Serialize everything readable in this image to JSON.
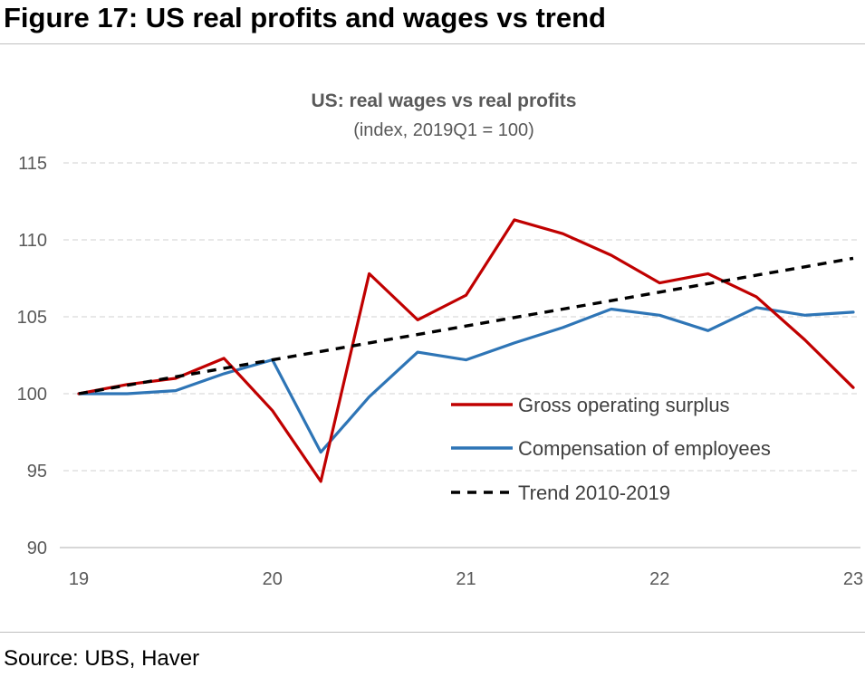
{
  "figure": {
    "title": "Figure 17: US real profits and wages vs trend",
    "source": "Source: UBS, Haver"
  },
  "chart_data": {
    "type": "line",
    "title": "US: real wages vs real profits",
    "subtitle": "(index, 2019Q1 = 100)",
    "xlabel": "",
    "ylabel": "",
    "x": [
      2019.0,
      2019.25,
      2019.5,
      2019.75,
      2020.0,
      2020.25,
      2020.5,
      2020.75,
      2021.0,
      2021.25,
      2021.5,
      2021.75,
      2022.0,
      2022.25,
      2022.5,
      2022.75,
      2023.0
    ],
    "xlim": [
      2019,
      2023
    ],
    "ylim": [
      90,
      115
    ],
    "x_ticks": [
      2019,
      2020,
      2021,
      2022,
      2023
    ],
    "x_tick_labels": [
      "19",
      "20",
      "21",
      "22",
      "23"
    ],
    "y_ticks": [
      90,
      95,
      100,
      105,
      110,
      115
    ],
    "y_tick_labels": [
      "90",
      "95",
      "100",
      "105",
      "110",
      "115"
    ],
    "grid": "horizontal dashed",
    "legend_position": "bottom-right",
    "series": [
      {
        "name": "Gross operating surplus",
        "color": "#c00000",
        "style": "solid",
        "values": [
          100.0,
          100.6,
          101.0,
          102.3,
          98.9,
          94.3,
          107.8,
          104.8,
          106.4,
          111.3,
          110.4,
          109.0,
          107.2,
          107.8,
          106.3,
          103.5,
          100.4
        ]
      },
      {
        "name": "Compensation of employees",
        "color": "#2e75b6",
        "style": "solid",
        "values": [
          100.0,
          100.0,
          100.2,
          101.3,
          102.2,
          96.2,
          99.8,
          102.7,
          102.2,
          103.3,
          104.3,
          105.5,
          105.1,
          104.1,
          105.6,
          105.1,
          105.3
        ]
      },
      {
        "name": "Trend 2010-2019",
        "color": "#000000",
        "style": "dashed",
        "values": [
          100.0,
          100.55,
          101.1,
          101.65,
          102.2,
          102.75,
          103.3,
          103.85,
          104.4,
          104.95,
          105.5,
          106.05,
          106.6,
          107.15,
          107.7,
          108.25,
          108.8
        ]
      }
    ]
  }
}
